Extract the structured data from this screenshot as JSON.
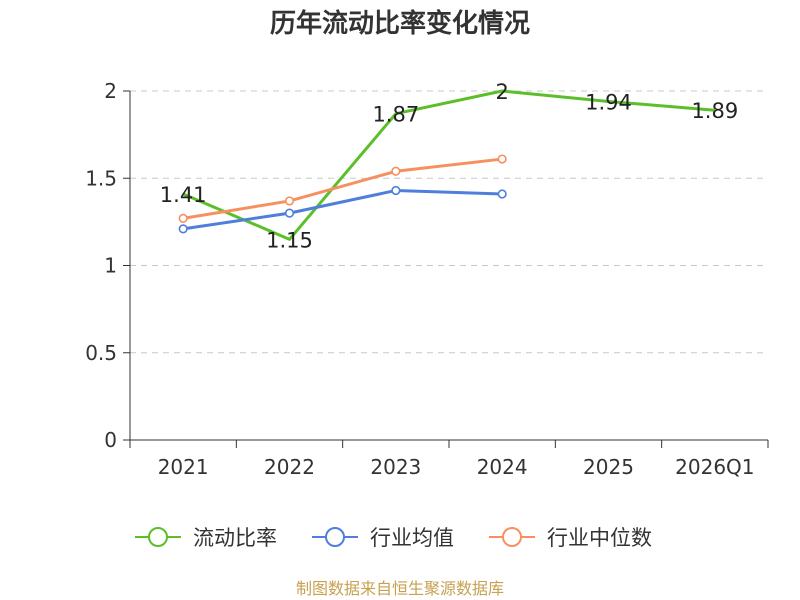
{
  "chart_data": {
    "type": "line",
    "title": "历年流动比率变化情况",
    "categories": [
      "2021",
      "2022",
      "2023",
      "2024",
      "2025",
      "2026Q1"
    ],
    "y_ticks": [
      "0",
      "0.5",
      "1",
      "1.5",
      "2"
    ],
    "ylim": [
      0,
      2
    ],
    "grid": true,
    "legend_position": "bottom",
    "series": [
      {
        "name": "流动比率",
        "color": "#5cbf2a",
        "values": [
          1.41,
          1.15,
          1.87,
          2,
          1.94,
          1.89
        ],
        "labels": [
          "1.41",
          "1.15",
          "1.87",
          "2",
          "1.94",
          "1.89"
        ],
        "show_labels": true
      },
      {
        "name": "行业均值",
        "color": "#4f7fdb",
        "values": [
          1.21,
          1.3,
          1.43,
          1.41,
          null,
          null
        ],
        "show_labels": false
      },
      {
        "name": "行业中位数",
        "color": "#f79060",
        "values": [
          1.27,
          1.37,
          1.54,
          1.61,
          null,
          null
        ],
        "show_labels": false
      }
    ],
    "source": "制图数据来自恒生聚源数据库"
  }
}
